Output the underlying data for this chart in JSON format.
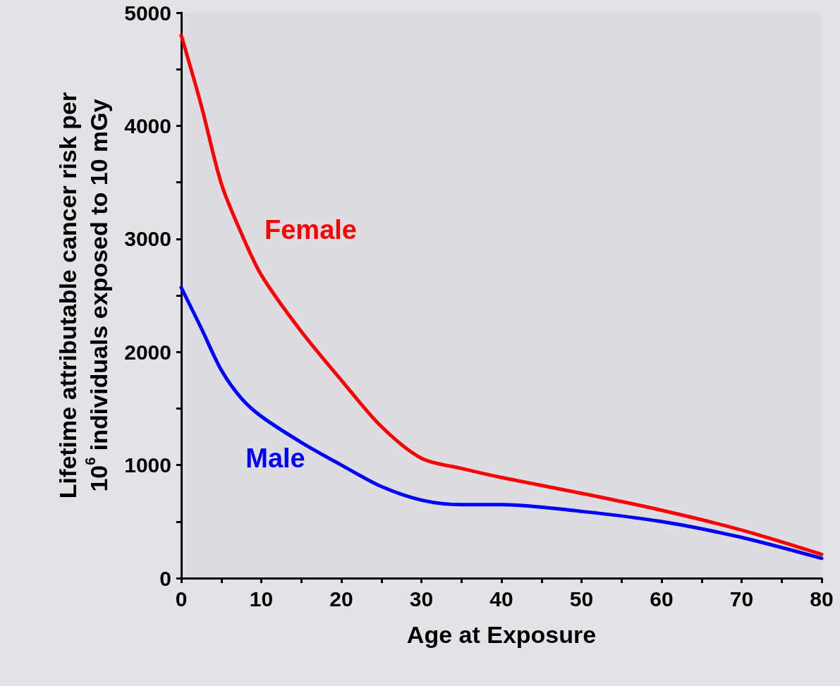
{
  "chart_data": {
    "type": "line",
    "xlabel": "Age at Exposure",
    "ylabel": "Lifetime attributable cancer risk per\n10$^{6}$ individuals exposed to 10 mGy",
    "x": [
      0,
      2.5,
      5,
      7.5,
      10,
      15,
      20,
      25,
      30,
      35,
      40,
      50,
      60,
      70,
      80
    ],
    "series": [
      {
        "name": "Female",
        "color": "#ff0000",
        "values": [
          4800,
          4180,
          3490,
          3050,
          2680,
          2180,
          1750,
          1340,
          1060,
          970,
          890,
          750,
          600,
          425,
          210
        ]
      },
      {
        "name": "Male",
        "color": "#0000ff",
        "values": [
          2570,
          2210,
          1840,
          1590,
          1430,
          1200,
          1000,
          810,
          690,
          650,
          650,
          590,
          500,
          360,
          175
        ]
      }
    ],
    "xlim": [
      0,
      80
    ],
    "xticks": [
      0,
      {
        "value": 5,
        "label": null
      },
      10,
      {
        "value": 15,
        "label": null
      },
      20,
      {
        "value": 25,
        "label": null
      },
      30,
      {
        "value": 35,
        "label": null
      },
      40,
      {
        "value": 45,
        "label": null
      },
      50,
      {
        "value": 55,
        "label": null
      },
      60,
      {
        "value": 65,
        "label": null
      },
      70,
      {
        "value": 75,
        "label": null
      },
      80
    ],
    "ylim": [
      0,
      5000
    ],
    "yticks": [
      0,
      {
        "value": 500,
        "label": null
      },
      1000,
      {
        "value": 1500,
        "label": null
      },
      2000,
      {
        "value": 2500,
        "label": null
      },
      3000,
      {
        "value": 3500,
        "label": null
      },
      4000,
      {
        "value": 4500,
        "label": null
      },
      5000
    ],
    "grid": false,
    "legend": false,
    "marker": "none",
    "line_style": "solid"
  }
}
